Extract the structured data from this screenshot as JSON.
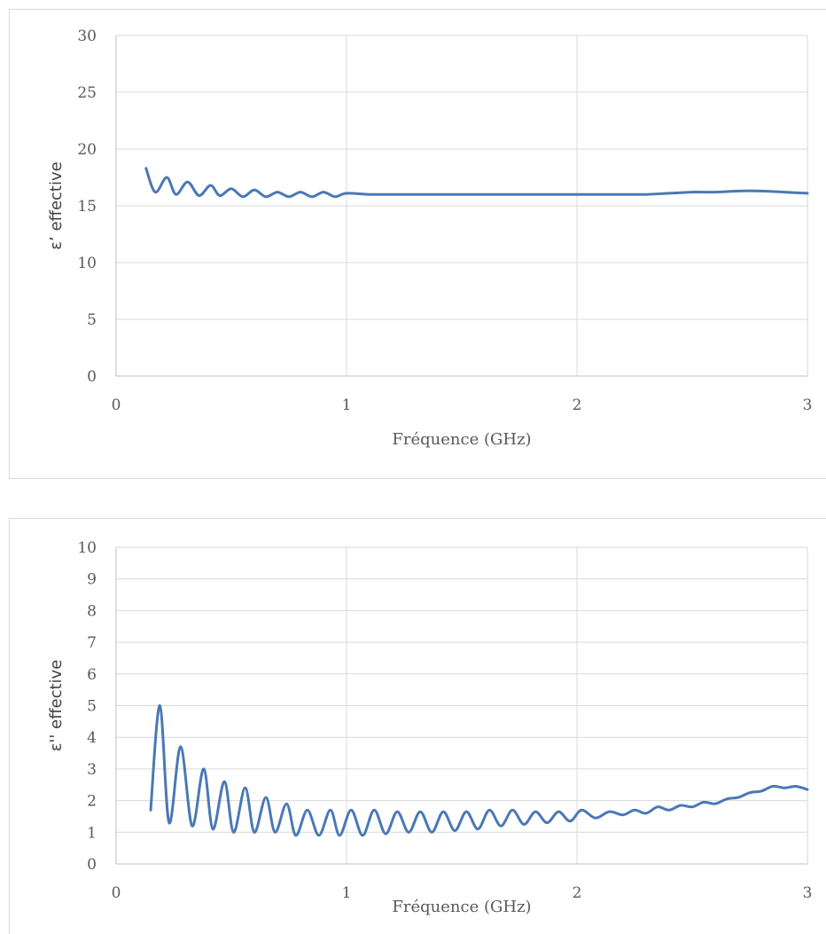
{
  "chart_data": [
    {
      "type": "line",
      "xlabel": "Fréquence (GHz)",
      "ylabel": "ε’ effective",
      "xlim": [
        0,
        3
      ],
      "ylim": [
        0,
        30
      ],
      "xticks": [
        0,
        1,
        2,
        3
      ],
      "yticks": [
        0,
        5,
        10,
        15,
        20,
        25,
        30
      ],
      "grid": true,
      "color": "#4a78b5",
      "series": [
        {
          "x": [
            0.13,
            0.17,
            0.22,
            0.26,
            0.31,
            0.36,
            0.41,
            0.45,
            0.5,
            0.55,
            0.6,
            0.65,
            0.7,
            0.75,
            0.8,
            0.85,
            0.9,
            0.95,
            1.0,
            1.1,
            1.2,
            1.3,
            1.4,
            1.5,
            1.6,
            1.7,
            1.8,
            1.9,
            2.0,
            2.1,
            2.2,
            2.3,
            2.4,
            2.5,
            2.6,
            2.7,
            2.8,
            2.9,
            3.0
          ],
          "values": [
            18.3,
            16.2,
            17.5,
            16.0,
            17.1,
            15.9,
            16.8,
            15.9,
            16.5,
            15.8,
            16.4,
            15.8,
            16.2,
            15.8,
            16.2,
            15.8,
            16.2,
            15.8,
            16.1,
            16.0,
            16.0,
            16.0,
            16.0,
            16.0,
            16.0,
            16.0,
            16.0,
            16.0,
            16.0,
            16.0,
            16.0,
            16.0,
            16.1,
            16.2,
            16.2,
            16.3,
            16.3,
            16.2,
            16.1
          ]
        }
      ]
    },
    {
      "type": "line",
      "xlabel": "Fréquence (GHz)",
      "ylabel": "ε'' effective",
      "xlim": [
        0,
        3
      ],
      "ylim": [
        0,
        10
      ],
      "xticks": [
        0,
        1,
        2,
        3
      ],
      "yticks": [
        0,
        1,
        2,
        3,
        4,
        5,
        6,
        7,
        8,
        9,
        10
      ],
      "grid": true,
      "color": "#4a78b5",
      "series": [
        {
          "x": [
            0.15,
            0.19,
            0.23,
            0.28,
            0.33,
            0.38,
            0.42,
            0.47,
            0.51,
            0.56,
            0.6,
            0.65,
            0.69,
            0.74,
            0.78,
            0.83,
            0.88,
            0.93,
            0.97,
            1.02,
            1.07,
            1.12,
            1.17,
            1.22,
            1.27,
            1.32,
            1.37,
            1.42,
            1.47,
            1.52,
            1.57,
            1.62,
            1.67,
            1.72,
            1.77,
            1.82,
            1.87,
            1.92,
            1.97,
            2.02,
            2.08,
            2.14,
            2.2,
            2.25,
            2.3,
            2.35,
            2.4,
            2.45,
            2.5,
            2.55,
            2.6,
            2.65,
            2.7,
            2.75,
            2.8,
            2.85,
            2.9,
            2.95,
            3.0
          ],
          "values": [
            1.7,
            5.0,
            1.3,
            3.7,
            1.2,
            3.0,
            1.1,
            2.6,
            1.0,
            2.4,
            1.0,
            2.1,
            1.0,
            1.9,
            0.9,
            1.7,
            0.9,
            1.7,
            0.9,
            1.7,
            0.9,
            1.7,
            0.95,
            1.65,
            1.0,
            1.65,
            1.0,
            1.65,
            1.05,
            1.65,
            1.1,
            1.7,
            1.2,
            1.7,
            1.25,
            1.65,
            1.3,
            1.65,
            1.35,
            1.7,
            1.45,
            1.65,
            1.55,
            1.7,
            1.6,
            1.8,
            1.7,
            1.85,
            1.8,
            1.95,
            1.9,
            2.05,
            2.1,
            2.25,
            2.3,
            2.45,
            2.4,
            2.45,
            2.35
          ]
        }
      ]
    }
  ]
}
